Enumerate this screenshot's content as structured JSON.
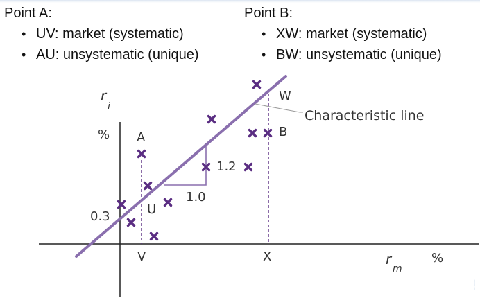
{
  "pointA": {
    "title": "Point A:",
    "bullets": [
      "UV: market (systematic)",
      "AU: unsystematic (unique)"
    ]
  },
  "pointB": {
    "title": "Point B:",
    "bullets": [
      "XW: market (systematic)",
      "BW: unsystematic (unique)"
    ]
  },
  "diagram": {
    "y_axis_label": "r",
    "y_axis_subscript": "i",
    "y_unit": "%",
    "x_axis_label": "r",
    "x_axis_subscript": "m",
    "x_unit": "%",
    "intercept_label": "0.3",
    "line_label": "Characteristic line",
    "run_label": "1.0",
    "rise_label": "1.2",
    "point_labels": {
      "A": "A",
      "U": "U",
      "V": "V",
      "B": "B",
      "W": "W",
      "X": "X"
    },
    "bullet_symbol": "•",
    "colors": {
      "line": "#8a6fae",
      "marker": "#5a2d82",
      "axis": "#222222",
      "label": "#333333"
    }
  }
}
